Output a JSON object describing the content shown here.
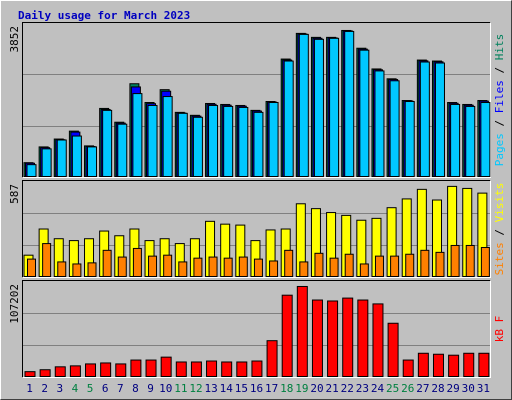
{
  "chart_data": [
    {
      "type": "bar",
      "title": "Daily usage for March 2023",
      "series": [
        {
          "name": "Hits",
          "color": "#00805c",
          "values": [
            355,
            760,
            962,
            1165,
            786,
            1748,
            1394,
            2382,
            1900,
            2230,
            1647,
            1571,
            1875,
            1850,
            1824,
            1698,
            1926,
            3016,
            3675,
            3573,
            3573,
            3750,
            3294,
            2762,
            2509,
            1951,
            2990,
            2965,
            1900,
            1850,
            1951
          ]
        },
        {
          "name": "Files",
          "color": "#0000ff",
          "values": [
            340,
            740,
            945,
            1140,
            770,
            1720,
            1370,
            2300,
            1870,
            2190,
            1630,
            1550,
            1855,
            1830,
            1805,
            1680,
            1910,
            2990,
            3660,
            3550,
            3560,
            3740,
            3270,
            2740,
            2490,
            1940,
            2970,
            2945,
            1880,
            1830,
            1935
          ]
        },
        {
          "name": "Pages",
          "color": "#00c8ff",
          "values": [
            304,
            710,
            937,
            1039,
            760,
            1698,
            1343,
            2129,
            1824,
            2053,
            1622,
            1520,
            1824,
            1799,
            1773,
            1647,
            1900,
            2965,
            3649,
            3522,
            3548,
            3725,
            3244,
            2711,
            2458,
            1926,
            2940,
            2914,
            1850,
            1799,
            1900
          ]
        }
      ],
      "ylim": [
        0,
        3852
      ],
      "yticks": [
        3852
      ],
      "grid": true,
      "legend_separator": " / "
    },
    {
      "type": "bar",
      "series": [
        {
          "name": "Visits",
          "color": "#ffff00",
          "values": [
            136,
            303,
            241,
            229,
            241,
            290,
            260,
            303,
            229,
            241,
            210,
            241,
            352,
            334,
            328,
            229,
            297,
            303,
            464,
            433,
            408,
            390,
            359,
            371,
            439,
            495,
            556,
            488,
            575,
            562,
            532
          ]
        },
        {
          "name": "Sites",
          "color": "#ff8000",
          "values": [
            111,
            210,
            93,
            80,
            87,
            167,
            124,
            179,
            130,
            136,
            93,
            117,
            124,
            117,
            124,
            111,
            99,
            167,
            93,
            148,
            117,
            142,
            80,
            130,
            130,
            142,
            167,
            154,
            198,
            198,
            185
          ]
        }
      ],
      "ylim": [
        0,
        587
      ],
      "yticks": [
        587
      ],
      "grid": true,
      "legend_separator": " / "
    },
    {
      "type": "bar",
      "categories": [
        "1",
        "2",
        "3",
        "4",
        "5",
        "6",
        "7",
        "8",
        "9",
        "10",
        "11",
        "12",
        "13",
        "14",
        "15",
        "16",
        "17",
        "18",
        "19",
        "20",
        "21",
        "22",
        "23",
        "24",
        "25",
        "26",
        "27",
        "28",
        "29",
        "30",
        "31"
      ],
      "category_colors": [
        "#000080",
        "#000080",
        "#000080",
        "#008040",
        "#008040",
        "#000080",
        "#000080",
        "#000080",
        "#000080",
        "#000080",
        "#008040",
        "#008040",
        "#000080",
        "#000080",
        "#000080",
        "#000080",
        "#000080",
        "#008040",
        "#008040",
        "#000080",
        "#000080",
        "#000080",
        "#000080",
        "#000080",
        "#008040",
        "#008040",
        "#000080",
        "#000080",
        "#000080",
        "#000080",
        "#000080"
      ],
      "series": [
        {
          "name": "kB F",
          "color": "#ff0000",
          "values": [
            5640,
            7900,
            11280,
            12400,
            14660,
            15790,
            14660,
            19170,
            19170,
            22560,
            16920,
            16920,
            18050,
            16920,
            16920,
            18050,
            41740,
            94750,
            104900,
            89110,
            87990,
            91370,
            89110,
            84600,
            62040,
            19170,
            27070,
            25940,
            24820,
            27070,
            27070
          ]
        }
      ],
      "ylim": [
        0,
        107202
      ],
      "yticks": [
        107202
      ],
      "grid": true
    }
  ]
}
